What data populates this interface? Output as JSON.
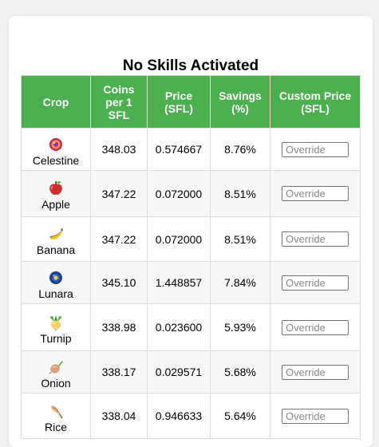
{
  "title": "No Skills Activated",
  "table": {
    "headers": {
      "crop": "Crop",
      "coins": "Coins per 1 SFL",
      "price": "Price (SFL)",
      "savings": "Savings (%)",
      "custom": "Custom Price (SFL)"
    },
    "rows": [
      {
        "crop": "Celestine",
        "icon": "celestine-icon",
        "coins": "348.03",
        "price": "0.574667",
        "savings": "8.76%",
        "placeholder": "Override"
      },
      {
        "crop": "Apple",
        "icon": "apple-icon",
        "coins": "347.22",
        "price": "0.072000",
        "savings": "8.51%",
        "placeholder": "Override"
      },
      {
        "crop": "Banana",
        "icon": "banana-icon",
        "coins": "347.22",
        "price": "0.072000",
        "savings": "8.51%",
        "placeholder": "Override"
      },
      {
        "crop": "Lunara",
        "icon": "lunara-icon",
        "coins": "345.10",
        "price": "1.448857",
        "savings": "7.84%",
        "placeholder": "Override"
      },
      {
        "crop": "Turnip",
        "icon": "turnip-icon",
        "coins": "338.98",
        "price": "0.023600",
        "savings": "5.93%",
        "placeholder": "Override"
      },
      {
        "crop": "Onion",
        "icon": "onion-icon",
        "coins": "338.17",
        "price": "0.029571",
        "savings": "5.68%",
        "placeholder": "Override"
      },
      {
        "crop": "Rice",
        "icon": "rice-icon",
        "coins": "338.04",
        "price": "0.946633",
        "savings": "5.64%",
        "placeholder": "Override"
      }
    ]
  },
  "colors": {
    "header_bg": "#4caf50",
    "header_text": "#ffffff",
    "border": "#dddddd",
    "row_alt": "#f7f7f7"
  }
}
